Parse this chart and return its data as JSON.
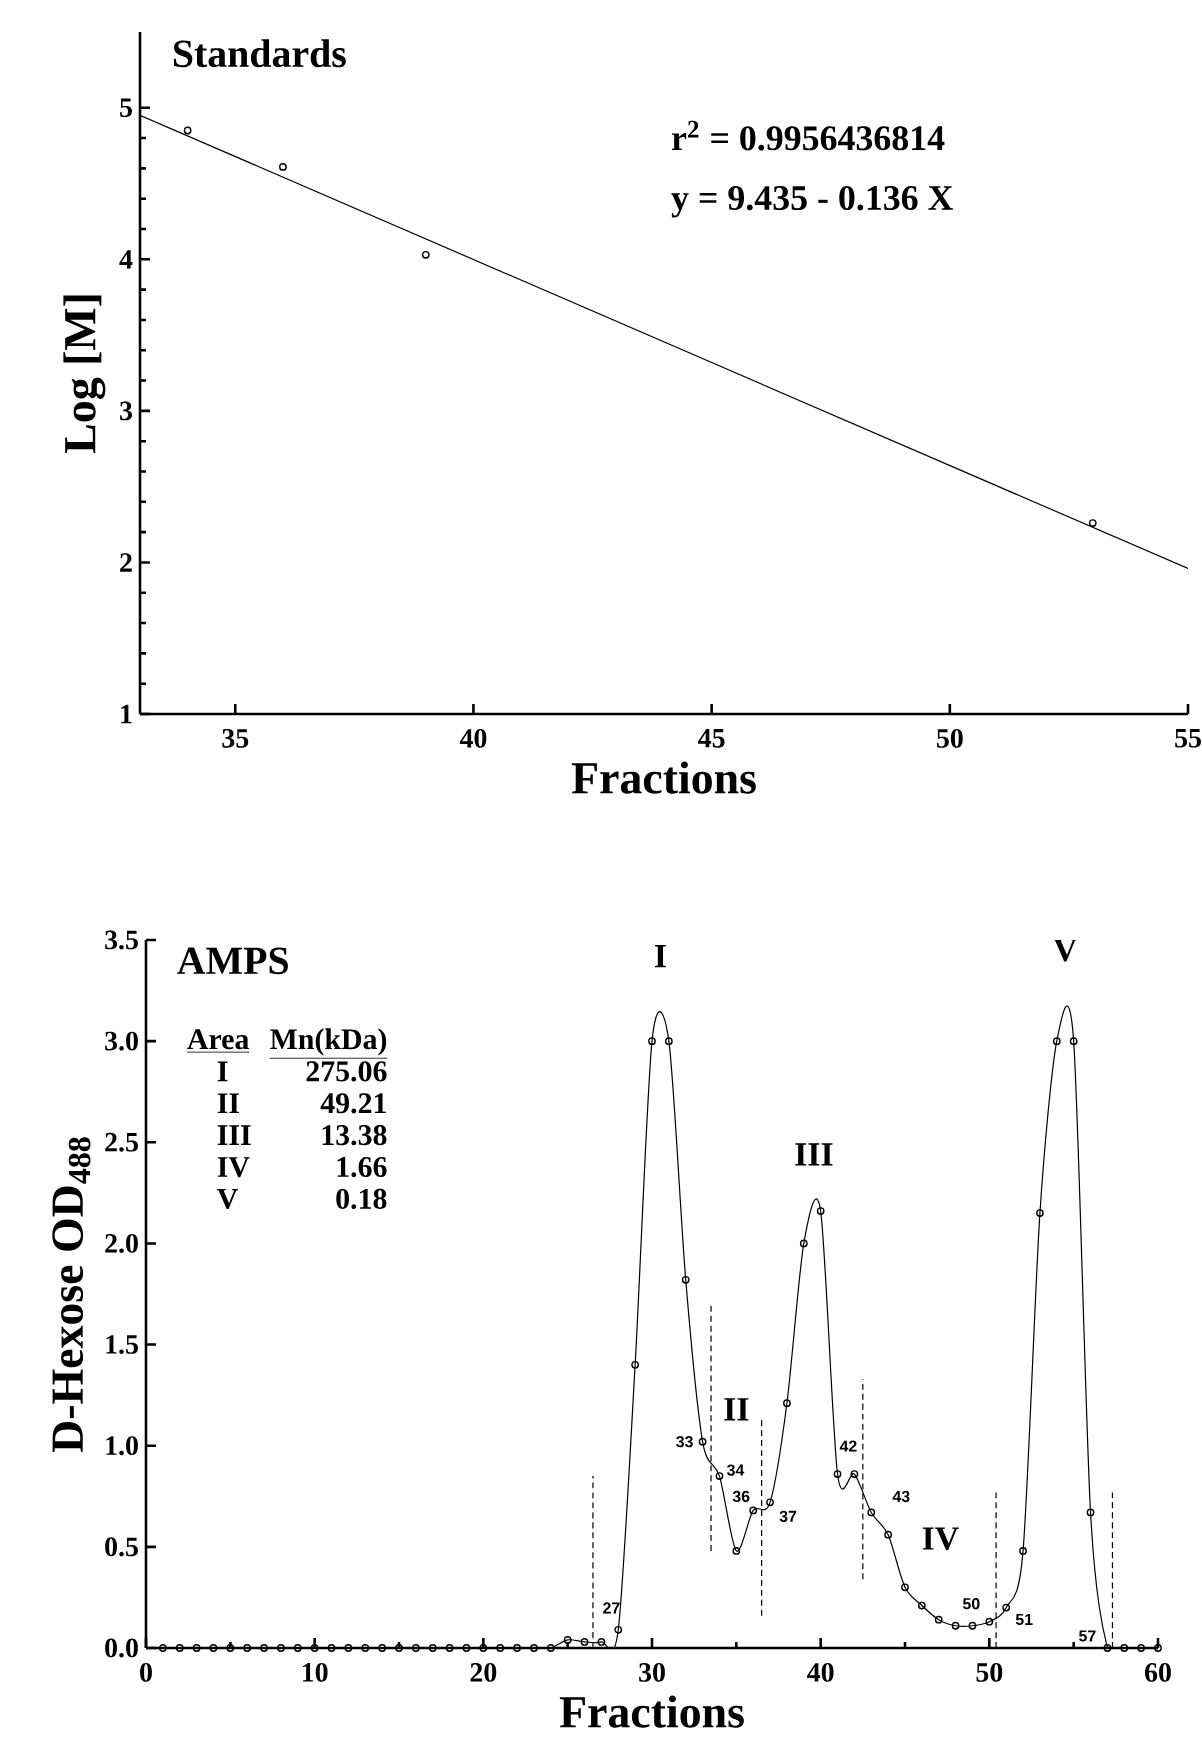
{
  "chart_data": [
    {
      "type": "scatter",
      "title": "Standards",
      "xlabel": "Fractions",
      "ylabel": "Log [M]",
      "xlim": [
        33,
        55
      ],
      "xticks": [
        35,
        40,
        45,
        50,
        55
      ],
      "ylim": [
        1,
        5.5
      ],
      "yticks": [
        1,
        2,
        3,
        4,
        5
      ],
      "marker": "circle",
      "series": [
        {
          "type": "scatter",
          "color": "#000000",
          "x": [
            34,
            36,
            39,
            53
          ],
          "values": [
            4.85,
            4.61,
            4.03,
            2.26
          ]
        },
        {
          "type": "line",
          "color": "#000000",
          "marker": "none",
          "line_style": "solid",
          "x": [
            33,
            55
          ],
          "values": [
            4.95,
            1.96
          ]
        }
      ],
      "annotations": [
        "r$^{2}$ = 0.9956436814",
        "y = 9.435 - 0.136 X"
      ]
    },
    {
      "type": "line",
      "title": "AMPS",
      "xlabel": "Fractions",
      "ylabel": "D-Hexose OD$_{488}$",
      "xlim": [
        0,
        60
      ],
      "xticks": [
        0,
        10,
        20,
        30,
        40,
        50,
        60
      ],
      "ylim": [
        0,
        3.5
      ],
      "yticks": [
        {
          "value": 0,
          "label": "0.0"
        },
        {
          "value": 0.5,
          "label": "0.5"
        },
        {
          "value": 1,
          "label": "1.0"
        },
        {
          "value": 1.5,
          "label": "1.5"
        },
        {
          "value": 2,
          "label": "2.0"
        },
        {
          "value": 2.5,
          "label": "2.5"
        },
        {
          "value": 3,
          "label": "3.0"
        },
        {
          "value": 3.5,
          "label": "3.5"
        }
      ],
      "marker": "circle",
      "line_style": "solid",
      "series": [
        {
          "color": "#000000",
          "x": [
            1,
            2,
            3,
            4,
            5,
            6,
            7,
            8,
            9,
            10,
            11,
            12,
            13,
            14,
            15,
            16,
            17,
            18,
            19,
            20,
            21,
            22,
            23,
            24,
            25,
            26,
            27,
            28,
            29,
            30,
            31,
            32,
            33,
            34,
            35,
            36,
            37,
            38,
            39,
            40,
            41,
            42,
            43,
            44,
            45,
            46,
            47,
            48,
            49,
            50,
            51,
            52,
            53,
            54,
            55,
            56,
            57,
            58,
            59,
            60
          ],
          "values": [
            0,
            0,
            0,
            0,
            0,
            0,
            0,
            0,
            0,
            0,
            0,
            0,
            0,
            0,
            0,
            0,
            0,
            0,
            0,
            0,
            0,
            0,
            0,
            0,
            0.04,
            0.03,
            0.03,
            0.09,
            1.4,
            3.0,
            3.0,
            1.82,
            1.02,
            0.85,
            0.48,
            0.68,
            0.72,
            1.21,
            2.0,
            2.16,
            0.86,
            0.86,
            0.67,
            0.56,
            0.3,
            0.21,
            0.14,
            0.11,
            0.11,
            0.13,
            0.2,
            0.48,
            2.15,
            3.0,
            3.0,
            0.67,
            0,
            0,
            0,
            0
          ]
        },
        {
          "color": "#000000",
          "marker": "none",
          "line_style": "dashed",
          "x": [
            26.5,
            26.5
          ],
          "values": [
            0,
            0.85
          ]
        },
        {
          "color": "#000000",
          "marker": "none",
          "line_style": "dashed",
          "x": [
            33.5,
            33.5
          ],
          "values": [
            0.48,
            1.71
          ]
        },
        {
          "color": "#000000",
          "marker": "none",
          "line_style": "dashed",
          "x": [
            36.5,
            36.5
          ],
          "values": [
            0.16,
            1.13
          ]
        },
        {
          "color": "#000000",
          "marker": "none",
          "line_style": "dashed",
          "x": [
            42.5,
            42.5
          ],
          "values": [
            0.34,
            1.33
          ]
        },
        {
          "color": "#000000",
          "marker": "none",
          "line_style": "dashed",
          "x": [
            50.4,
            50.4
          ],
          "values": [
            0,
            0.78
          ]
        },
        {
          "color": "#000000",
          "marker": "none",
          "line_style": "dashed",
          "x": [
            57.3,
            57.3
          ],
          "values": [
            0,
            0.78
          ]
        }
      ],
      "annotations": [
        "Area",
        "Mn(kDa)",
        "I",
        "275.06",
        "II",
        "49.21",
        "III",
        "13.38",
        "IV",
        "1.66",
        "V",
        "0.18",
        "I",
        "II",
        "III",
        "IV",
        "V",
        {
          "text": "27",
          "x": 27,
          "y": 0.03
        },
        {
          "text": "33",
          "x": 33,
          "y": 1.02
        },
        {
          "text": "34",
          "x": 34,
          "y": 0.85
        },
        {
          "text": "36",
          "x": 36,
          "y": 0.68
        },
        {
          "text": "37",
          "x": 37,
          "y": 0.72
        },
        {
          "text": "42",
          "x": 42,
          "y": 0.86
        },
        {
          "text": "43",
          "x": 43,
          "y": 0.67
        },
        {
          "text": "50",
          "x": 50,
          "y": 0.13
        },
        {
          "text": "51",
          "x": 51,
          "y": 0.2
        },
        {
          "text": "57",
          "x": 57,
          "y": 0
        }
      ]
    }
  ]
}
